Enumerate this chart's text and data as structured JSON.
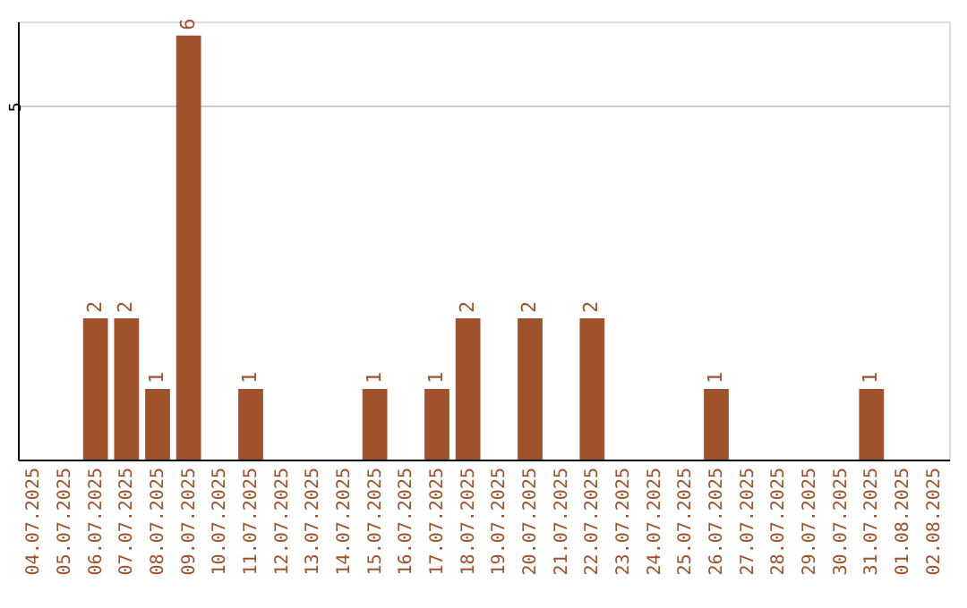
{
  "chart_data": {
    "type": "bar",
    "categories": [
      "04.07.2025",
      "05.07.2025",
      "06.07.2025",
      "07.07.2025",
      "08.07.2025",
      "09.07.2025",
      "10.07.2025",
      "11.07.2025",
      "12.07.2025",
      "13.07.2025",
      "14.07.2025",
      "15.07.2025",
      "16.07.2025",
      "17.07.2025",
      "18.07.2025",
      "19.07.2025",
      "20.07.2025",
      "21.07.2025",
      "22.07.2025",
      "23.07.2025",
      "24.07.2025",
      "25.07.2025",
      "26.07.2025",
      "27.07.2025",
      "28.07.2025",
      "29.07.2025",
      "30.07.2025",
      "31.07.2025",
      "01.08.2025",
      "02.08.2025"
    ],
    "values": [
      0,
      0,
      2,
      2,
      1,
      6,
      0,
      1,
      0,
      0,
      0,
      1,
      0,
      1,
      2,
      0,
      2,
      0,
      2,
      0,
      0,
      0,
      1,
      0,
      0,
      0,
      0,
      1,
      0,
      0
    ],
    "value_labels": [
      null,
      null,
      "2",
      "2",
      "1",
      "6",
      null,
      "1",
      null,
      null,
      null,
      "1",
      null,
      "1",
      "2",
      null,
      "2",
      null,
      "2",
      null,
      null,
      null,
      "1",
      null,
      null,
      null,
      null,
      "1",
      null,
      null
    ],
    "color": "#a0522d",
    "ylim": [
      0,
      6.2
    ],
    "yticks": [
      5
    ],
    "grid": "y"
  }
}
